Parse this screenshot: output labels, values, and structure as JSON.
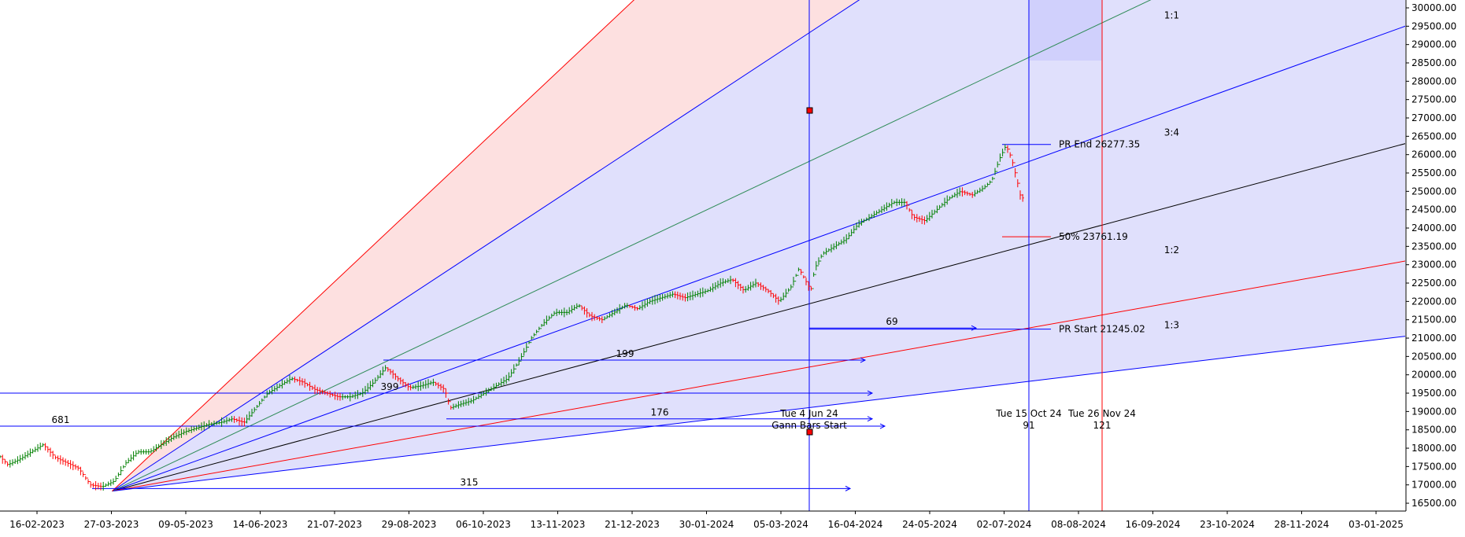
{
  "chart_data": {
    "type": "candlestick",
    "ylim": [
      16400,
      30150
    ],
    "y_tick_step": 500,
    "x_tick_labels": [
      "16-02-2023",
      "27-03-2023",
      "09-05-2023",
      "14-06-2023",
      "21-07-2023",
      "29-08-2023",
      "06-10-2023",
      "13-11-2023",
      "21-12-2023",
      "30-01-2024",
      "05-03-2024",
      "16-04-2024",
      "24-05-2024",
      "02-07-2024",
      "08-08-2024",
      "16-09-2024",
      "23-10-2024",
      "28-11-2024",
      "03-01-2025"
    ],
    "price_path": [
      [
        -6,
        17900
      ],
      [
        10,
        17550
      ],
      [
        25,
        17700
      ],
      [
        40,
        17900
      ],
      [
        55,
        18100
      ],
      [
        70,
        17750
      ],
      [
        85,
        17600
      ],
      [
        100,
        17450
      ],
      [
        115,
        17000
      ],
      [
        130,
        16950
      ],
      [
        145,
        17100
      ],
      [
        160,
        17600
      ],
      [
        175,
        17900
      ],
      [
        190,
        17900
      ],
      [
        205,
        18100
      ],
      [
        220,
        18300
      ],
      [
        235,
        18450
      ],
      [
        250,
        18550
      ],
      [
        265,
        18650
      ],
      [
        280,
        18700
      ],
      [
        295,
        18800
      ],
      [
        310,
        18700
      ],
      [
        325,
        19100
      ],
      [
        340,
        19500
      ],
      [
        355,
        19700
      ],
      [
        370,
        19900
      ],
      [
        385,
        19800
      ],
      [
        400,
        19600
      ],
      [
        415,
        19500
      ],
      [
        430,
        19400
      ],
      [
        445,
        19400
      ],
      [
        460,
        19500
      ],
      [
        475,
        19800
      ],
      [
        490,
        20200
      ],
      [
        505,
        19900
      ],
      [
        520,
        19650
      ],
      [
        535,
        19700
      ],
      [
        550,
        19800
      ],
      [
        565,
        19600
      ],
      [
        572,
        19100
      ],
      [
        585,
        19200
      ],
      [
        600,
        19300
      ],
      [
        615,
        19500
      ],
      [
        630,
        19700
      ],
      [
        645,
        19900
      ],
      [
        660,
        20400
      ],
      [
        675,
        21000
      ],
      [
        690,
        21400
      ],
      [
        705,
        21700
      ],
      [
        720,
        21700
      ],
      [
        735,
        21900
      ],
      [
        750,
        21600
      ],
      [
        765,
        21500
      ],
      [
        780,
        21700
      ],
      [
        795,
        21900
      ],
      [
        810,
        21800
      ],
      [
        825,
        22000
      ],
      [
        840,
        22100
      ],
      [
        855,
        22200
      ],
      [
        870,
        22100
      ],
      [
        885,
        22200
      ],
      [
        900,
        22300
      ],
      [
        915,
        22500
      ],
      [
        930,
        22600
      ],
      [
        945,
        22300
      ],
      [
        960,
        22500
      ],
      [
        975,
        22300
      ],
      [
        990,
        22000
      ],
      [
        1005,
        22400
      ],
      [
        1015,
        22900
      ],
      [
        1025,
        22500
      ],
      [
        1030,
        22300
      ],
      [
        1035,
        22900
      ],
      [
        1045,
        23300
      ],
      [
        1060,
        23500
      ],
      [
        1075,
        23700
      ],
      [
        1090,
        24100
      ],
      [
        1105,
        24300
      ],
      [
        1120,
        24500
      ],
      [
        1135,
        24700
      ],
      [
        1150,
        24700
      ],
      [
        1160,
        24300
      ],
      [
        1175,
        24200
      ],
      [
        1190,
        24500
      ],
      [
        1205,
        24800
      ],
      [
        1220,
        25000
      ],
      [
        1235,
        24900
      ],
      [
        1250,
        25100
      ],
      [
        1260,
        25300
      ],
      [
        1270,
        25900
      ],
      [
        1278,
        26250
      ],
      [
        1285,
        25900
      ],
      [
        1292,
        25300
      ],
      [
        1296,
        24900
      ],
      [
        1300,
        24800
      ]
    ],
    "fan_origin": {
      "x": "27-03-2023",
      "y": 16830
    },
    "fan_lines": [
      {
        "label": "1:1",
        "color": "#0000ff",
        "end_y": 29500
      },
      {
        "label": "3:4",
        "color": "#000000",
        "end_y": 26300
      },
      {
        "label": "1:2",
        "color": "#ff0000",
        "end_y": 23100
      },
      {
        "label": "1:3",
        "color": "#0000ff",
        "end_y": 21050
      },
      {
        "label": "",
        "color": "#2e8b57",
        "end_y": 33500
      },
      {
        "label": "",
        "color": "#0000ff",
        "end_y": 40000
      },
      {
        "label": "",
        "color": "#ff0000",
        "end_y": 50000
      }
    ],
    "levels": [
      {
        "label": "PR End 26277.35",
        "value": 26277.35
      },
      {
        "label": "50% 23761.19",
        "value": 23761.19
      },
      {
        "label": "PR Start 21245.02",
        "value": 21245.02
      }
    ],
    "bar_counts": [
      {
        "label": "681",
        "y": 18600
      },
      {
        "label": "399",
        "y": 19500
      },
      {
        "label": "199",
        "y": 20400
      },
      {
        "label": "176",
        "y": 18800
      },
      {
        "label": "69",
        "y": 21275
      },
      {
        "label": "315",
        "y": 16900
      }
    ],
    "time_markers": [
      {
        "date": "Tue 4 Jun 24",
        "caption": "Gann Bars Start",
        "color": "#0000ff"
      },
      {
        "date": "Tue 15 Oct 24",
        "caption": "91",
        "color": "#0000ff"
      },
      {
        "date": "Tue 26 Nov 24",
        "caption": "121",
        "color": "#ff0000"
      }
    ],
    "colors": {
      "up": "#008000",
      "down": "#ff0000",
      "fan_blue_fill": "#e0e0fc",
      "fan_red_fill": "#fde0e0",
      "time_zone_fill": "#d0d0fc"
    }
  }
}
